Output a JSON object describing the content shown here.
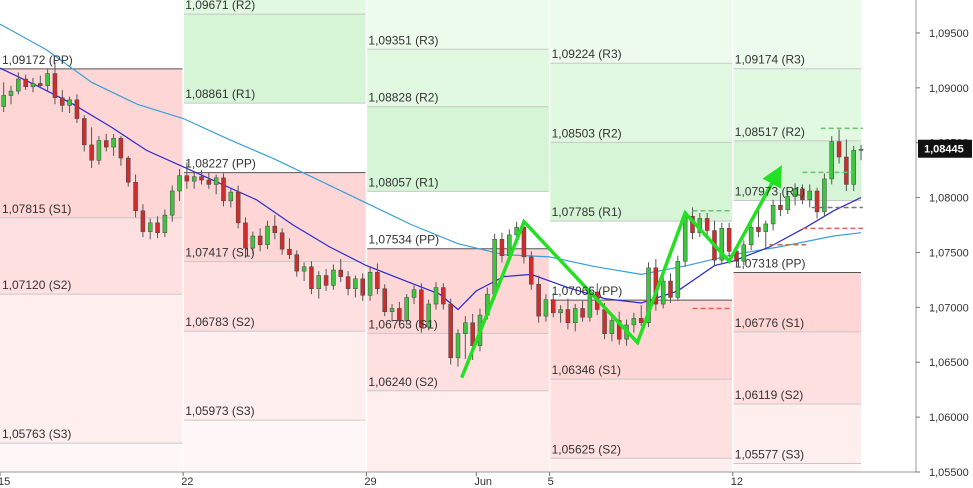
{
  "chart_data": {
    "type": "candlestick",
    "y_axis": {
      "range": [
        1.055,
        1.098
      ],
      "ticks": [
        "1,09500",
        "1,09000",
        "1,08500",
        "1,08000",
        "1,07500",
        "1,07000",
        "1,06500",
        "1,06000",
        "1,05500"
      ],
      "tick_values": [
        1.095,
        1.09,
        1.085,
        1.08,
        1.075,
        1.07,
        1.065,
        1.06,
        1.055
      ]
    },
    "x_axis": {
      "range": [
        0,
        100
      ],
      "ticks": [
        {
          "label": "15",
          "x": 0
        },
        {
          "label": "22",
          "x": 20
        },
        {
          "label": "29",
          "x": 40
        },
        {
          "label": "Jun",
          "x": 52
        },
        {
          "label": "5",
          "x": 60
        },
        {
          "label": "12",
          "x": 80
        }
      ]
    },
    "last_price": {
      "label": "1,08445",
      "value": 1.08445
    },
    "pivot_weeks": [
      {
        "x_start": 0,
        "x_end": 20,
        "levels": [
          {
            "name": "PP",
            "value": 1.09172,
            "label": "1,09172 (PP)"
          },
          {
            "name": "S1",
            "value": 1.07815,
            "label": "1,07815 (S1)"
          },
          {
            "name": "S2",
            "value": 1.0712,
            "label": "1,07120 (S2)"
          },
          {
            "name": "S3",
            "value": 1.05763,
            "label": "1,05763 (S3)"
          }
        ]
      },
      {
        "x_start": 20,
        "x_end": 40,
        "levels": [
          {
            "name": "R2",
            "value": 1.09671,
            "label": "1,09671 (R2)"
          },
          {
            "name": "R1",
            "value": 1.08861,
            "label": "1,08861 (R1)"
          },
          {
            "name": "PP",
            "value": 1.08227,
            "label": "1,08227 (PP)"
          },
          {
            "name": "S1",
            "value": 1.07417,
            "label": "1,07417 (S1)"
          },
          {
            "name": "S2",
            "value": 1.06783,
            "label": "1,06783 (S2)"
          },
          {
            "name": "S3",
            "value": 1.05973,
            "label": "1,05973 (S3)"
          }
        ]
      },
      {
        "x_start": 40,
        "x_end": 60,
        "levels": [
          {
            "name": "R3",
            "value": 1.09351,
            "label": "1,09351 (R3)"
          },
          {
            "name": "R2",
            "value": 1.08828,
            "label": "1,08828 (R2)"
          },
          {
            "name": "R1",
            "value": 1.08057,
            "label": "1,08057 (R1)"
          },
          {
            "name": "PP",
            "value": 1.07534,
            "label": "1,07534 (PP)"
          },
          {
            "name": "S1",
            "value": 1.06763,
            "label": "1,06763 (S1)"
          },
          {
            "name": "S2",
            "value": 1.0624,
            "label": "1,06240 (S2)"
          }
        ]
      },
      {
        "x_start": 60,
        "x_end": 80,
        "levels": [
          {
            "name": "R3",
            "value": 1.09224,
            "label": "1,09224 (R3)"
          },
          {
            "name": "R2",
            "value": 1.08503,
            "label": "1,08503 (R2)"
          },
          {
            "name": "R1",
            "value": 1.07785,
            "label": "1,07785 (R1)"
          },
          {
            "name": "PP",
            "value": 1.07066,
            "label": "1,07066 (PP)"
          },
          {
            "name": "S1",
            "value": 1.06346,
            "label": "1,06346 (S1)"
          },
          {
            "name": "S2",
            "value": 1.05625,
            "label": "1,05625 (S2)"
          }
        ]
      },
      {
        "x_start": 80,
        "x_end": 94,
        "levels": [
          {
            "name": "R3",
            "value": 1.09174,
            "label": "1,09174 (R3)"
          },
          {
            "name": "R2",
            "value": 1.08517,
            "label": "1,08517 (R2)"
          },
          {
            "name": "R1",
            "value": 1.07973,
            "label": "1,07973 (R1)"
          },
          {
            "name": "PP",
            "value": 1.07318,
            "label": "1,07318 (PP)"
          },
          {
            "name": "S1",
            "value": 1.06776,
            "label": "1,06776 (S1)"
          },
          {
            "name": "S2",
            "value": 1.06119,
            "label": "1,06119 (S2)"
          },
          {
            "name": "S3",
            "value": 1.05577,
            "label": "1,05577 (S3)"
          }
        ]
      }
    ],
    "ma_slow": [
      [
        0,
        1.0958
      ],
      [
        5,
        1.0935
      ],
      [
        10,
        1.0905
      ],
      [
        15,
        1.0885
      ],
      [
        20,
        1.0872
      ],
      [
        25,
        1.0853
      ],
      [
        30,
        1.0835
      ],
      [
        35,
        1.0815
      ],
      [
        40,
        1.0795
      ],
      [
        45,
        1.0775
      ],
      [
        50,
        1.0758
      ],
      [
        55,
        1.0748
      ],
      [
        60,
        1.0746
      ],
      [
        65,
        1.0737
      ],
      [
        70,
        1.073
      ],
      [
        75,
        1.0738
      ],
      [
        80,
        1.0748
      ],
      [
        85,
        1.0755
      ],
      [
        88,
        1.076
      ],
      [
        91,
        1.0765
      ],
      [
        94,
        1.0768
      ]
    ],
    "ma_fast": [
      [
        0,
        1.0918
      ],
      [
        4,
        1.0902
      ],
      [
        8,
        1.0885
      ],
      [
        12,
        1.0865
      ],
      [
        16,
        1.0843
      ],
      [
        20,
        1.0828
      ],
      [
        24,
        1.0813
      ],
      [
        28,
        1.0798
      ],
      [
        32,
        1.0775
      ],
      [
        36,
        1.0755
      ],
      [
        40,
        1.0738
      ],
      [
        44,
        1.0725
      ],
      [
        48,
        1.0712
      ],
      [
        50,
        1.0698
      ],
      [
        52,
        1.0715
      ],
      [
        55,
        1.0728
      ],
      [
        58,
        1.073
      ],
      [
        62,
        1.0718
      ],
      [
        66,
        1.0708
      ],
      [
        70,
        1.0704
      ],
      [
        74,
        1.0715
      ],
      [
        78,
        1.0738
      ],
      [
        80,
        1.0742
      ],
      [
        84,
        1.0755
      ],
      [
        88,
        1.0773
      ],
      [
        91,
        1.0788
      ],
      [
        94,
        1.08
      ]
    ],
    "candles": [
      [
        0.4,
        1.0883,
        1.0905,
        1.0878,
        1.0893
      ],
      [
        1.2,
        1.0893,
        1.0902,
        1.0885,
        1.0897
      ],
      [
        2.0,
        1.0897,
        1.0914,
        1.0894,
        1.0908
      ],
      [
        2.8,
        1.0908,
        1.0912,
        1.0898,
        1.0901
      ],
      [
        3.6,
        1.0901,
        1.0909,
        1.0896,
        1.0904
      ],
      [
        4.4,
        1.0904,
        1.0911,
        1.09,
        1.0902
      ],
      [
        5.2,
        1.0902,
        1.0917,
        1.0897,
        1.0913
      ],
      [
        6.0,
        1.0913,
        1.0923,
        1.0885,
        1.0891
      ],
      [
        6.8,
        1.0891,
        1.0898,
        1.0878,
        1.0884
      ],
      [
        7.6,
        1.0884,
        1.0892,
        1.0877,
        1.0889
      ],
      [
        8.4,
        1.0889,
        1.0894,
        1.0868,
        1.0872
      ],
      [
        9.2,
        1.0872,
        1.0875,
        1.0842,
        1.0848
      ],
      [
        10.0,
        1.0848,
        1.0864,
        1.0827,
        1.0834
      ],
      [
        10.8,
        1.0834,
        1.0856,
        1.083,
        1.0852
      ],
      [
        11.6,
        1.0852,
        1.0858,
        1.0842,
        1.0846
      ],
      [
        12.4,
        1.0846,
        1.0858,
        1.0838,
        1.0854
      ],
      [
        13.2,
        1.0854,
        1.0856,
        1.0829,
        1.0836
      ],
      [
        14.0,
        1.0836,
        1.0838,
        1.081,
        1.0814
      ],
      [
        14.8,
        1.0814,
        1.0821,
        1.0782,
        1.0788
      ],
      [
        15.6,
        1.0788,
        1.0794,
        1.0764,
        1.0769
      ],
      [
        16.4,
        1.0769,
        1.0781,
        1.0762,
        1.0777
      ],
      [
        17.2,
        1.0777,
        1.0783,
        1.0763,
        1.0768
      ],
      [
        18.0,
        1.0768,
        1.0789,
        1.0764,
        1.0784
      ],
      [
        18.8,
        1.0784,
        1.0811,
        1.0778,
        1.0806
      ],
      [
        19.6,
        1.0806,
        1.0826,
        1.0797,
        1.082
      ],
      [
        20.4,
        1.082,
        1.0832,
        1.0808,
        1.0815
      ],
      [
        21.2,
        1.0815,
        1.0824,
        1.0808,
        1.0819
      ],
      [
        22.0,
        1.0819,
        1.0825,
        1.0812,
        1.0816
      ],
      [
        22.8,
        1.0816,
        1.0823,
        1.0808,
        1.0812
      ],
      [
        23.6,
        1.0812,
        1.0821,
        1.0803,
        1.0818
      ],
      [
        24.4,
        1.0818,
        1.0822,
        1.0792,
        1.0797
      ],
      [
        25.2,
        1.0797,
        1.0808,
        1.0791,
        1.0805
      ],
      [
        26.0,
        1.0805,
        1.0811,
        1.0772,
        1.0777
      ],
      [
        26.8,
        1.0777,
        1.0782,
        1.0745,
        1.0754
      ],
      [
        27.6,
        1.0754,
        1.0769,
        1.0749,
        1.0765
      ],
      [
        28.4,
        1.0765,
        1.0772,
        1.0751,
        1.0757
      ],
      [
        29.2,
        1.0757,
        1.0779,
        1.0753,
        1.0774
      ],
      [
        30.0,
        1.0774,
        1.0784,
        1.0762,
        1.0768
      ],
      [
        30.8,
        1.0768,
        1.0772,
        1.0748,
        1.0753
      ],
      [
        31.6,
        1.0753,
        1.0763,
        1.0744,
        1.0748
      ],
      [
        32.4,
        1.0748,
        1.0752,
        1.0728,
        1.0733
      ],
      [
        33.2,
        1.0733,
        1.0741,
        1.0724,
        1.0737
      ],
      [
        34.0,
        1.0737,
        1.0742,
        1.0712,
        1.0717
      ],
      [
        34.8,
        1.0717,
        1.0733,
        1.0708,
        1.0729
      ],
      [
        35.6,
        1.0729,
        1.0735,
        1.0715,
        1.072
      ],
      [
        36.4,
        1.072,
        1.0739,
        1.0716,
        1.0734
      ],
      [
        37.2,
        1.0734,
        1.0744,
        1.0723,
        1.0728
      ],
      [
        38.0,
        1.0728,
        1.0733,
        1.0711,
        1.0717
      ],
      [
        38.8,
        1.0717,
        1.0729,
        1.0709,
        1.0726
      ],
      [
        39.6,
        1.0726,
        1.0731,
        1.0706,
        1.0711
      ],
      [
        40.4,
        1.0711,
        1.0737,
        1.0706,
        1.0732
      ],
      [
        41.2,
        1.0732,
        1.074,
        1.0712,
        1.0717
      ],
      [
        42.0,
        1.0717,
        1.0721,
        1.0692,
        1.0696
      ],
      [
        42.8,
        1.0696,
        1.0703,
        1.0687,
        1.0699
      ],
      [
        43.6,
        1.0699,
        1.0705,
        1.0684,
        1.0688
      ],
      [
        44.4,
        1.0688,
        1.0712,
        1.0684,
        1.0709
      ],
      [
        45.2,
        1.0709,
        1.072,
        1.0703,
        1.0716
      ],
      [
        46.0,
        1.0716,
        1.0722,
        1.0677,
        1.0682
      ],
      [
        46.8,
        1.0682,
        1.0707,
        1.0679,
        1.0703
      ],
      [
        47.6,
        1.0703,
        1.0723,
        1.0698,
        1.0718
      ],
      [
        48.4,
        1.0718,
        1.0722,
        1.0698,
        1.0703
      ],
      [
        49.2,
        1.0703,
        1.0708,
        1.0648,
        1.0654
      ],
      [
        50.0,
        1.0654,
        1.068,
        1.0646,
        1.0676
      ],
      [
        50.8,
        1.0676,
        1.0692,
        1.0653,
        1.0686
      ],
      [
        51.6,
        1.0686,
        1.0694,
        1.0652,
        1.0665
      ],
      [
        52.4,
        1.0665,
        1.0699,
        1.066,
        1.0693
      ],
      [
        53.2,
        1.0693,
        1.0718,
        1.0689,
        1.0712
      ],
      [
        54.0,
        1.0712,
        1.0767,
        1.0707,
        1.0762
      ],
      [
        54.8,
        1.0762,
        1.0768,
        1.0741,
        1.0747
      ],
      [
        55.6,
        1.0747,
        1.0771,
        1.0742,
        1.0766
      ],
      [
        56.4,
        1.0766,
        1.0778,
        1.0758,
        1.0773
      ],
      [
        57.2,
        1.0773,
        1.0778,
        1.074,
        1.0746
      ],
      [
        58.0,
        1.0746,
        1.0751,
        1.0716,
        1.0721
      ],
      [
        58.8,
        1.0721,
        1.0729,
        1.0686,
        1.0692
      ],
      [
        59.6,
        1.0692,
        1.0712,
        1.0687,
        1.0707
      ],
      [
        60.4,
        1.0707,
        1.0713,
        1.0691,
        1.0695
      ],
      [
        61.2,
        1.0695,
        1.0702,
        1.0686,
        1.0698
      ],
      [
        62.0,
        1.0698,
        1.0708,
        1.068,
        1.0686
      ],
      [
        62.8,
        1.0686,
        1.0703,
        1.0678,
        1.0699
      ],
      [
        63.6,
        1.0699,
        1.0706,
        1.0687,
        1.0691
      ],
      [
        64.4,
        1.0691,
        1.0719,
        1.0687,
        1.0714
      ],
      [
        65.2,
        1.0714,
        1.0722,
        1.0693,
        1.0698
      ],
      [
        66.0,
        1.0698,
        1.0704,
        1.0671,
        1.0676
      ],
      [
        66.8,
        1.0676,
        1.0693,
        1.0669,
        1.0688
      ],
      [
        67.6,
        1.0688,
        1.0696,
        1.0666,
        1.0671
      ],
      [
        68.4,
        1.0671,
        1.0689,
        1.0665,
        1.0684
      ],
      [
        69.2,
        1.0684,
        1.0695,
        1.0677,
        1.069
      ],
      [
        70.0,
        1.069,
        1.0702,
        1.0683,
        1.0686
      ],
      [
        70.8,
        1.0686,
        1.0741,
        1.0682,
        1.0736
      ],
      [
        71.6,
        1.0736,
        1.0744,
        1.0697,
        1.0703
      ],
      [
        72.4,
        1.0703,
        1.0729,
        1.0699,
        1.0724
      ],
      [
        73.2,
        1.0724,
        1.0731,
        1.0704,
        1.0709
      ],
      [
        74.0,
        1.0709,
        1.0747,
        1.0706,
        1.0742
      ],
      [
        74.8,
        1.0742,
        1.0788,
        1.0737,
        1.0783
      ],
      [
        75.6,
        1.0783,
        1.0791,
        1.0762,
        1.0768
      ],
      [
        76.4,
        1.0768,
        1.0786,
        1.0764,
        1.0781
      ],
      [
        77.2,
        1.0781,
        1.0786,
        1.0766,
        1.077
      ],
      [
        78.0,
        1.077,
        1.0779,
        1.0738,
        1.0743
      ],
      [
        78.8,
        1.0743,
        1.0777,
        1.0739,
        1.0772
      ],
      [
        79.6,
        1.0772,
        1.0777,
        1.0746,
        1.0751
      ],
      [
        80.4,
        1.0751,
        1.0757,
        1.0737,
        1.0742
      ],
      [
        81.2,
        1.0742,
        1.0761,
        1.0738,
        1.0757
      ],
      [
        82.0,
        1.0757,
        1.0778,
        1.0752,
        1.0773
      ],
      [
        82.8,
        1.0773,
        1.0791,
        1.0764,
        1.0769
      ],
      [
        83.6,
        1.0769,
        1.0779,
        1.0754,
        1.0776
      ],
      [
        84.4,
        1.0776,
        1.0798,
        1.077,
        1.0793
      ],
      [
        85.2,
        1.0793,
        1.0804,
        1.0783,
        1.0789
      ],
      [
        86.0,
        1.0789,
        1.0806,
        1.0785,
        1.0801
      ],
      [
        86.8,
        1.0801,
        1.0813,
        1.0793,
        1.0808
      ],
      [
        87.6,
        1.0808,
        1.0812,
        1.0794,
        1.0798
      ],
      [
        88.4,
        1.0798,
        1.0812,
        1.0791,
        1.0806
      ],
      [
        89.2,
        1.0806,
        1.0809,
        1.0781,
        1.0787
      ],
      [
        90.0,
        1.0787,
        1.0822,
        1.0783,
        1.0817
      ],
      [
        90.8,
        1.0817,
        1.0856,
        1.0812,
        1.0851
      ],
      [
        91.6,
        1.0851,
        1.0862,
        1.0831,
        1.0837
      ],
      [
        92.4,
        1.0837,
        1.0853,
        1.0806,
        1.0812
      ],
      [
        93.2,
        1.0812,
        1.0847,
        1.0806,
        1.0843
      ],
      [
        94.0,
        1.0843,
        1.0848,
        1.0834,
        1.0844
      ]
    ],
    "pattern_lines": [
      [
        [
          50.4,
          1.0636
        ],
        [
          57.2,
          1.0778
        ],
        [
          69.6,
          1.0668
        ],
        [
          74.8,
          1.0786
        ],
        [
          79.6,
          1.0742
        ],
        [
          84.8,
          1.0821
        ]
      ]
    ],
    "dashed_markers": [
      {
        "x0": 75.6,
        "x1": 79.8,
        "y": 1.0788,
        "color": "#6cc46c"
      },
      {
        "x0": 87.6,
        "x1": 93.2,
        "y": 1.0823,
        "color": "#6cc46c"
      },
      {
        "x0": 89.6,
        "x1": 94.2,
        "y": 1.0863,
        "color": "#6cc46c"
      },
      {
        "x0": 75.6,
        "x1": 79.8,
        "y": 1.0699,
        "color": "#e06060"
      },
      {
        "x0": 87.6,
        "x1": 94.2,
        "y": 1.0772,
        "color": "#e06060"
      },
      {
        "x0": 88.6,
        "x1": 94.2,
        "y": 1.0791,
        "color": "#777777"
      },
      {
        "x0": 84.0,
        "x1": 88.0,
        "y": 1.0757,
        "color": "#c07050"
      }
    ],
    "colors": {
      "up": "#3ec43e",
      "down": "#d12c2c",
      "ma_slow": "#3aa0d8",
      "ma_fast": "#2a2ad0",
      "pattern": "#22e022",
      "last_price_bg": "#111111"
    }
  }
}
